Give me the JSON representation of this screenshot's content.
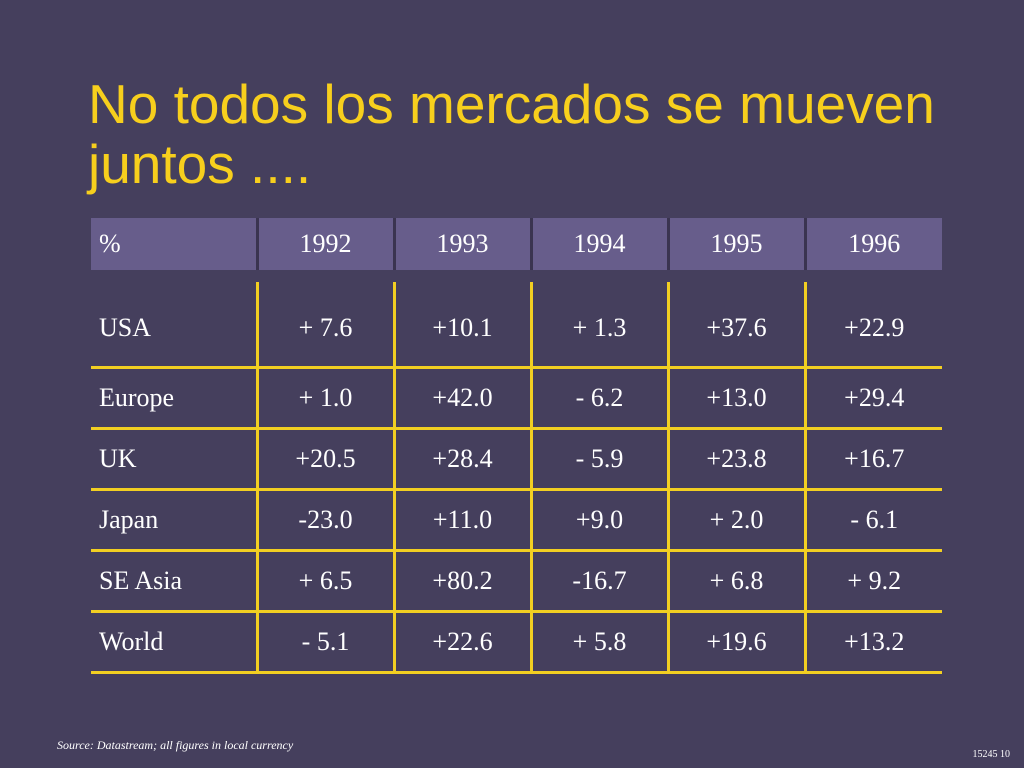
{
  "slide": {
    "title": "No todos los mercados se mueven juntos ....",
    "source": "Source: Datastream; all figures in local currency",
    "page_number": "15245 10"
  },
  "table": {
    "corner_label": "%",
    "years": [
      "1992",
      "1993",
      "1994",
      "1995",
      "1996"
    ],
    "rows": [
      {
        "label": "USA",
        "values": [
          "+ 7.6",
          "+10.1",
          "+ 1.3",
          "+37.6",
          "+22.9"
        ]
      },
      {
        "label": "Europe",
        "values": [
          "+ 1.0",
          "+42.0",
          "- 6.2",
          "+13.0",
          "+29.4"
        ]
      },
      {
        "label": "UK",
        "values": [
          "+20.5",
          "+28.4",
          "- 5.9",
          "+23.8",
          "+16.7"
        ]
      },
      {
        "label": "Japan",
        "values": [
          "-23.0",
          "+11.0",
          "+9.0",
          "+ 2.0",
          "- 6.1"
        ]
      },
      {
        "label": "SE Asia",
        "values": [
          "+ 6.5",
          "+80.2",
          "-16.7",
          "+ 6.8",
          "+ 9.2"
        ]
      },
      {
        "label": "World",
        "values": [
          "- 5.1",
          "+22.6",
          "+ 5.8",
          "+19.6",
          "+13.2"
        ]
      }
    ]
  },
  "colors": {
    "background": "#453f5d",
    "title": "#f7cf1d",
    "header_fill": "#675d8b",
    "grid_lines": "#f2cf22",
    "text": "#ffffff"
  }
}
